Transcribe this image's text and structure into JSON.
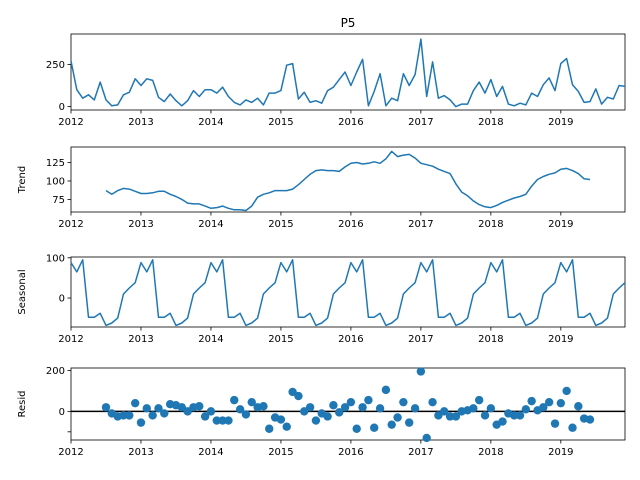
{
  "chart_data": [
    {
      "panel": "observed",
      "type": "line",
      "title": "P5",
      "ylabel": "",
      "xlim": [
        2012,
        2019.917
      ],
      "ylim": [
        -20,
        430
      ],
      "yticks": [
        0,
        250
      ],
      "xticks": [
        "2012",
        "2013",
        "2014",
        "2015",
        "2016",
        "2017",
        "2018",
        "2019"
      ],
      "grid": false,
      "color": "#1f77b4",
      "x": [
        2012.0,
        2012.083,
        2012.167,
        2012.25,
        2012.333,
        2012.417,
        2012.5,
        2012.583,
        2012.667,
        2012.75,
        2012.833,
        2012.917,
        2013.0,
        2013.083,
        2013.167,
        2013.25,
        2013.333,
        2013.417,
        2013.5,
        2013.583,
        2013.667,
        2013.75,
        2013.833,
        2013.917,
        2014.0,
        2014.083,
        2014.167,
        2014.25,
        2014.333,
        2014.417,
        2014.5,
        2014.583,
        2014.667,
        2014.75,
        2014.833,
        2014.917,
        2015.0,
        2015.083,
        2015.167,
        2015.25,
        2015.333,
        2015.417,
        2015.5,
        2015.583,
        2015.667,
        2015.75,
        2015.833,
        2015.917,
        2016.0,
        2016.083,
        2016.167,
        2016.25,
        2016.333,
        2016.417,
        2016.5,
        2016.583,
        2016.667,
        2016.75,
        2016.833,
        2016.917,
        2017.0,
        2017.083,
        2017.167,
        2017.25,
        2017.333,
        2017.417,
        2017.5,
        2017.583,
        2017.667,
        2017.75,
        2017.833,
        2017.917,
        2018.0,
        2018.083,
        2018.167,
        2018.25,
        2018.333,
        2018.417,
        2018.5,
        2018.583,
        2018.667,
        2018.75,
        2018.833,
        2018.917,
        2019.0,
        2019.083,
        2019.167,
        2019.25,
        2019.333,
        2019.417,
        2019.5,
        2019.583,
        2019.667,
        2019.75,
        2019.833,
        2019.917
      ],
      "values": [
        270,
        100,
        50,
        70,
        40,
        145,
        40,
        5,
        10,
        70,
        85,
        165,
        125,
        165,
        155,
        55,
        30,
        75,
        35,
        5,
        35,
        95,
        60,
        100,
        100,
        80,
        115,
        60,
        25,
        10,
        40,
        25,
        50,
        10,
        80,
        80,
        95,
        245,
        255,
        45,
        85,
        25,
        35,
        20,
        95,
        115,
        160,
        205,
        125,
        205,
        280,
        5,
        90,
        195,
        5,
        50,
        35,
        195,
        125,
        190,
        400,
        60,
        265,
        50,
        65,
        40,
        0,
        15,
        15,
        95,
        145,
        80,
        160,
        60,
        120,
        15,
        5,
        20,
        10,
        80,
        60,
        130,
        170,
        95,
        255,
        285,
        130,
        90,
        25,
        30,
        105,
        15,
        55,
        45,
        125,
        120
      ]
    },
    {
      "panel": "trend",
      "type": "line",
      "title": "",
      "ylabel": "Trend",
      "xlim": [
        2012,
        2019.917
      ],
      "ylim": [
        58,
        146
      ],
      "yticks": [
        75,
        100,
        125
      ],
      "xticks": [
        "2012",
        "2013",
        "2014",
        "2015",
        "2016",
        "2017",
        "2018",
        "2019"
      ],
      "grid": false,
      "color": "#1f77b4",
      "x": [
        2012.5,
        2012.583,
        2012.667,
        2012.75,
        2012.833,
        2012.917,
        2013.0,
        2013.083,
        2013.167,
        2013.25,
        2013.333,
        2013.417,
        2013.5,
        2013.583,
        2013.667,
        2013.75,
        2013.833,
        2013.917,
        2014.0,
        2014.083,
        2014.167,
        2014.25,
        2014.333,
        2014.417,
        2014.5,
        2014.583,
        2014.667,
        2014.75,
        2014.833,
        2014.917,
        2015.0,
        2015.083,
        2015.167,
        2015.25,
        2015.333,
        2015.417,
        2015.5,
        2015.583,
        2015.667,
        2015.75,
        2015.833,
        2015.917,
        2016.0,
        2016.083,
        2016.167,
        2016.25,
        2016.333,
        2016.417,
        2016.5,
        2016.583,
        2016.667,
        2016.75,
        2016.833,
        2016.917,
        2017.0,
        2017.083,
        2017.167,
        2017.25,
        2017.333,
        2017.417,
        2017.5,
        2017.583,
        2017.667,
        2017.75,
        2017.833,
        2017.917,
        2018.0,
        2018.083,
        2018.167,
        2018.25,
        2018.333,
        2018.417,
        2018.5,
        2018.583,
        2018.667,
        2018.75,
        2018.833,
        2018.917,
        2019.0,
        2019.083,
        2019.167,
        2019.25,
        2019.333,
        2019.417
      ],
      "values": [
        87,
        82,
        87,
        90,
        89,
        86,
        83,
        83,
        84,
        86,
        86,
        82,
        79,
        75,
        70,
        69,
        69,
        66,
        63,
        64,
        66,
        63,
        61,
        61,
        60,
        66,
        78,
        82,
        84,
        87,
        87,
        87,
        89,
        95,
        102,
        109,
        114,
        115,
        114,
        114,
        113,
        119,
        124,
        125,
        123,
        124,
        126,
        124,
        130,
        140,
        133,
        135,
        136,
        131,
        124,
        122,
        120,
        116,
        113,
        110,
        96,
        85,
        80,
        73,
        68,
        65,
        64,
        67,
        71,
        74,
        77,
        79,
        82,
        93,
        102,
        106,
        109,
        111,
        116,
        117,
        114,
        110,
        103,
        102
      ]
    },
    {
      "panel": "seasonal",
      "type": "line",
      "title": "",
      "ylabel": "Seasonal",
      "xlim": [
        2012,
        2019.917
      ],
      "ylim": [
        -72,
        102
      ],
      "yticks": [
        0,
        100
      ],
      "xticks": [
        "2012",
        "2013",
        "2014",
        "2015",
        "2016",
        "2017",
        "2018",
        "2019"
      ],
      "grid": false,
      "color": "#1f77b4",
      "x": [
        2012.0,
        2012.083,
        2012.167,
        2012.25,
        2012.333,
        2012.417,
        2012.5,
        2012.583,
        2012.667,
        2012.75,
        2012.833,
        2012.917,
        2013.0,
        2013.083,
        2013.167,
        2013.25,
        2013.333,
        2013.417,
        2013.5,
        2013.583,
        2013.667,
        2013.75,
        2013.833,
        2013.917,
        2014.0,
        2014.083,
        2014.167,
        2014.25,
        2014.333,
        2014.417,
        2014.5,
        2014.583,
        2014.667,
        2014.75,
        2014.833,
        2014.917,
        2015.0,
        2015.083,
        2015.167,
        2015.25,
        2015.333,
        2015.417,
        2015.5,
        2015.583,
        2015.667,
        2015.75,
        2015.833,
        2015.917,
        2016.0,
        2016.083,
        2016.167,
        2016.25,
        2016.333,
        2016.417,
        2016.5,
        2016.583,
        2016.667,
        2016.75,
        2016.833,
        2016.917,
        2017.0,
        2017.083,
        2017.167,
        2017.25,
        2017.333,
        2017.417,
        2017.5,
        2017.583,
        2017.667,
        2017.75,
        2017.833,
        2017.917,
        2018.0,
        2018.083,
        2018.167,
        2018.25,
        2018.333,
        2018.417,
        2018.5,
        2018.583,
        2018.667,
        2018.75,
        2018.833,
        2018.917,
        2019.0,
        2019.083,
        2019.167,
        2019.25,
        2019.333,
        2019.417,
        2019.5,
        2019.583,
        2019.667,
        2019.75,
        2019.833,
        2019.917
      ],
      "values": [
        88,
        65,
        95,
        -48,
        -48,
        -38,
        -68,
        -62,
        -50,
        10,
        25,
        38,
        88,
        65,
        95,
        -48,
        -48,
        -38,
        -68,
        -62,
        -50,
        10,
        25,
        38,
        88,
        65,
        95,
        -48,
        -48,
        -38,
        -68,
        -62,
        -50,
        10,
        25,
        38,
        88,
        65,
        95,
        -48,
        -48,
        -38,
        -68,
        -62,
        -50,
        10,
        25,
        38,
        88,
        65,
        95,
        -48,
        -48,
        -38,
        -68,
        -62,
        -50,
        10,
        25,
        38,
        88,
        65,
        95,
        -48,
        -48,
        -38,
        -68,
        -62,
        -50,
        10,
        25,
        38,
        88,
        65,
        95,
        -48,
        -48,
        -38,
        -68,
        -62,
        -50,
        10,
        25,
        38,
        88,
        65,
        95,
        -48,
        -48,
        -38,
        -68,
        -62,
        -50,
        10,
        25,
        38
      ]
    },
    {
      "panel": "resid",
      "type": "scatter",
      "title": "",
      "ylabel": "Resid",
      "xlim": [
        2012,
        2019.917
      ],
      "ylim": [
        -140,
        212
      ],
      "yticks": [
        -100,
        0,
        200
      ],
      "ytick_labels": [
        "",
        "0",
        "200"
      ],
      "zero_line": true,
      "xticks": [
        "2012",
        "2013",
        "2014",
        "2015",
        "2016",
        "2017",
        "2018",
        "2019"
      ],
      "grid": false,
      "color": "#1f77b4",
      "x": [
        2012.5,
        2012.583,
        2012.667,
        2012.75,
        2012.833,
        2012.917,
        2013.0,
        2013.083,
        2013.167,
        2013.25,
        2013.333,
        2013.417,
        2013.5,
        2013.583,
        2013.667,
        2013.75,
        2013.833,
        2013.917,
        2014.0,
        2014.083,
        2014.167,
        2014.25,
        2014.333,
        2014.417,
        2014.5,
        2014.583,
        2014.667,
        2014.75,
        2014.833,
        2014.917,
        2015.0,
        2015.083,
        2015.167,
        2015.25,
        2015.333,
        2015.417,
        2015.5,
        2015.583,
        2015.667,
        2015.75,
        2015.833,
        2015.917,
        2016.0,
        2016.083,
        2016.167,
        2016.25,
        2016.333,
        2016.417,
        2016.5,
        2016.583,
        2016.667,
        2016.75,
        2016.833,
        2016.917,
        2017.0,
        2017.083,
        2017.167,
        2017.25,
        2017.333,
        2017.417,
        2017.5,
        2017.583,
        2017.667,
        2017.75,
        2017.833,
        2017.917,
        2018.0,
        2018.083,
        2018.167,
        2018.25,
        2018.333,
        2018.417,
        2018.5,
        2018.583,
        2018.667,
        2018.75,
        2018.833,
        2018.917,
        2019.0,
        2019.083,
        2019.167,
        2019.25,
        2019.333,
        2019.417
      ],
      "values": [
        20,
        -10,
        -25,
        -20,
        -20,
        40,
        -55,
        15,
        -20,
        15,
        -10,
        35,
        30,
        20,
        0,
        20,
        25,
        -25,
        0,
        -45,
        -45,
        -45,
        55,
        10,
        -15,
        45,
        20,
        25,
        -85,
        -30,
        -40,
        -75,
        95,
        75,
        0,
        20,
        -45,
        -10,
        -25,
        30,
        -5,
        20,
        45,
        -85,
        20,
        55,
        -80,
        15,
        105,
        -65,
        -30,
        45,
        -55,
        15,
        195,
        -130,
        45,
        -20,
        0,
        -25,
        -25,
        0,
        5,
        15,
        55,
        -20,
        15,
        -65,
        -50,
        -10,
        -20,
        -20,
        10,
        50,
        5,
        20,
        45,
        -60,
        40,
        100,
        -80,
        25,
        -35,
        -40
      ]
    }
  ]
}
